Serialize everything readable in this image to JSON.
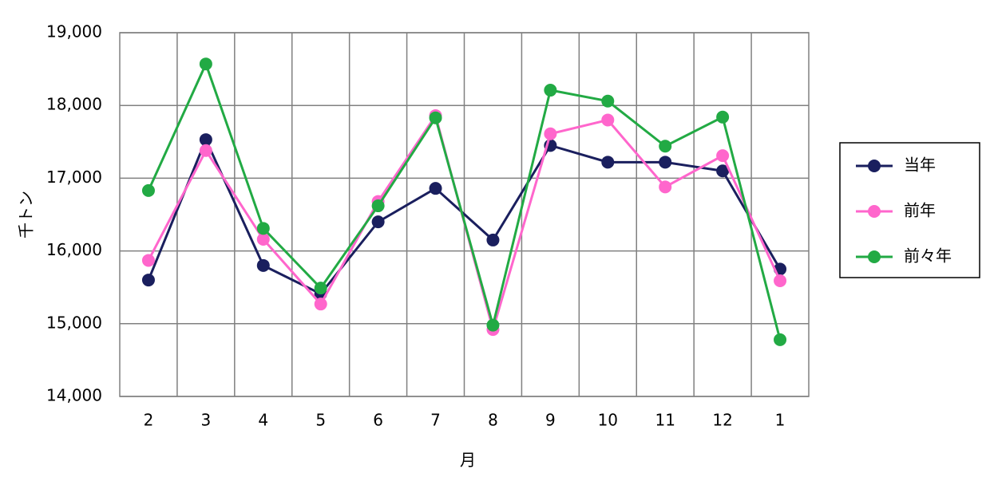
{
  "chart_data": {
    "type": "line",
    "x_label": "月",
    "y_label": "千トン",
    "categories": [
      "2",
      "3",
      "4",
      "5",
      "6",
      "7",
      "8",
      "9",
      "10",
      "11",
      "12",
      "1"
    ],
    "series": [
      {
        "name": "当年",
        "color": "#1a1f5e",
        "values": [
          15600,
          17530,
          15800,
          15410,
          16400,
          16860,
          16150,
          17450,
          17220,
          17220,
          17100,
          15750
        ]
      },
      {
        "name": "前年",
        "color": "#ff66cc",
        "values": [
          15870,
          17380,
          16160,
          15270,
          16680,
          17860,
          14920,
          17610,
          17800,
          16880,
          17310,
          15590
        ]
      },
      {
        "name": "前々年",
        "color": "#22aa44",
        "values": [
          16830,
          18570,
          16310,
          15490,
          16620,
          17830,
          14980,
          18210,
          18060,
          17440,
          17840,
          14780
        ]
      }
    ],
    "ylim": [
      14000,
      19000
    ],
    "yticks": [
      {
        "value": 14000,
        "label": "14,000"
      },
      {
        "value": 15000,
        "label": "15,000"
      },
      {
        "value": 16000,
        "label": "16,000"
      },
      {
        "value": 17000,
        "label": "17,000"
      },
      {
        "value": 18000,
        "label": "18,000"
      },
      {
        "value": 19000,
        "label": "19,000"
      }
    ],
    "grid": true,
    "legend": "right"
  }
}
